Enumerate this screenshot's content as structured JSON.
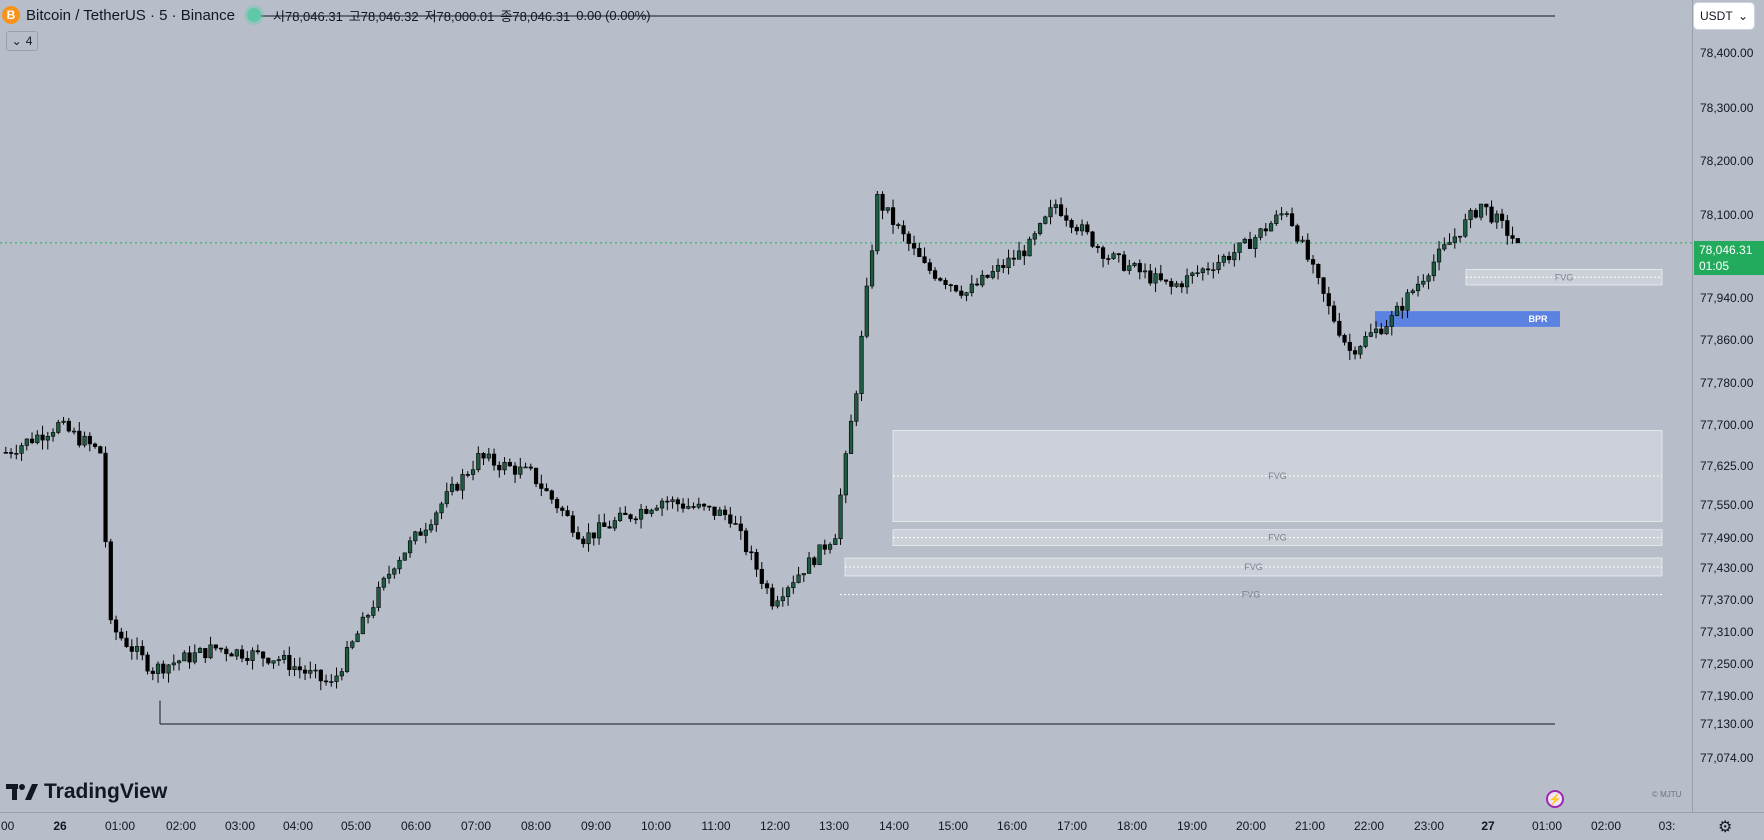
{
  "header": {
    "coin_icon": "B",
    "symbol": "Bitcoin / TetherUS · 5 · Binance",
    "open": "시78,046.31",
    "high": "고78,046.32",
    "low": "저78,000.01",
    "close": "종78,046.31",
    "change": "0.00 (0.00%)"
  },
  "indicator_toggle": {
    "chevron": "⌄",
    "count": "4"
  },
  "currency_select": {
    "value": "USDT",
    "chevron": "⌄"
  },
  "price_axis": {
    "ticks": [
      "78,400.00",
      "78,300.00",
      "78,200.00",
      "78,100.00",
      "77,940.00",
      "77,860.00",
      "77,780.00",
      "77,700.00",
      "77,625.00",
      "77,550.00",
      "77,490.00",
      "77,430.00",
      "77,370.00",
      "77,310.00",
      "77,250.00",
      "77,190.00",
      "77,130.00",
      "77,074.00"
    ],
    "last_price": "78,046.31",
    "countdown": "01:05"
  },
  "time_axis": {
    "ticks": [
      ":00",
      "26",
      "01:00",
      "02:00",
      "03:00",
      "04:00",
      "05:00",
      "06:00",
      "07:00",
      "08:00",
      "09:00",
      "10:00",
      "11:00",
      "12:00",
      "13:00",
      "14:00",
      "15:00",
      "16:00",
      "17:00",
      "18:00",
      "19:00",
      "20:00",
      "21:00",
      "22:00",
      "23:00",
      "27",
      "01:00",
      "02:00",
      "03:"
    ]
  },
  "zones": {
    "fvg_label": "FVG",
    "bpr_label": "BPR"
  },
  "brand": {
    "name": "TradingView",
    "watermark": "© MJTU"
  },
  "colors": {
    "background": "#b8bec9",
    "candle_up": "#1f5a43",
    "candle_down": "#000000",
    "last_price": "#22ab5c",
    "bpr": "#5b82e0",
    "fvg": "#dcdfe5"
  },
  "icons": [
    "bitcoin-icon",
    "live-status-icon",
    "chevron-down-icon",
    "lightning-icon",
    "settings-gear-icon",
    "tradingview-logo-icon"
  ],
  "chart_data": {
    "type": "candlestick",
    "interval": "5m",
    "symbol": "BTCUSDT",
    "last_price": 78046.31,
    "ylim": [
      77074,
      78450
    ],
    "anchors": [
      {
        "t": 0,
        "p": 77650
      },
      {
        "t": 10,
        "p": 77700
      },
      {
        "t": 18,
        "p": 77650
      },
      {
        "t": 20,
        "p": 77320
      },
      {
        "t": 28,
        "p": 77240
      },
      {
        "t": 40,
        "p": 77280
      },
      {
        "t": 52,
        "p": 77260
      },
      {
        "t": 62,
        "p": 77210
      },
      {
        "t": 74,
        "p": 77440
      },
      {
        "t": 90,
        "p": 77640
      },
      {
        "t": 100,
        "p": 77610
      },
      {
        "t": 110,
        "p": 77490
      },
      {
        "t": 125,
        "p": 77560
      },
      {
        "t": 138,
        "p": 77530
      },
      {
        "t": 146,
        "p": 77370
      },
      {
        "t": 154,
        "p": 77450
      },
      {
        "t": 158,
        "p": 77500
      },
      {
        "t": 162,
        "p": 77770
      },
      {
        "t": 166,
        "p": 78130
      },
      {
        "t": 175,
        "p": 78000
      },
      {
        "t": 183,
        "p": 77950
      },
      {
        "t": 195,
        "p": 78040
      },
      {
        "t": 200,
        "p": 78120
      },
      {
        "t": 210,
        "p": 78020
      },
      {
        "t": 222,
        "p": 77960
      },
      {
        "t": 236,
        "p": 78040
      },
      {
        "t": 244,
        "p": 78110
      },
      {
        "t": 252,
        "p": 77920
      },
      {
        "t": 256,
        "p": 77840
      },
      {
        "t": 264,
        "p": 77900
      },
      {
        "t": 272,
        "p": 78010
      },
      {
        "t": 281,
        "p": 78120
      },
      {
        "t": 288,
        "p": 78046.31
      }
    ],
    "zones": [
      {
        "label": "FVG",
        "top": 77995,
        "bottom": 77965
      },
      {
        "label": "BPR",
        "top": 77915,
        "bottom": 77885
      },
      {
        "label": "FVG",
        "top": 77690,
        "bottom": 77520
      },
      {
        "label": "FVG",
        "top": 77505,
        "bottom": 77475
      },
      {
        "label": "FVG",
        "top": 77450,
        "bottom": 77415
      },
      {
        "label": "FVG",
        "top": 77380,
        "bottom": 77380
      }
    ],
    "levels": [
      78440,
      77130
    ]
  }
}
